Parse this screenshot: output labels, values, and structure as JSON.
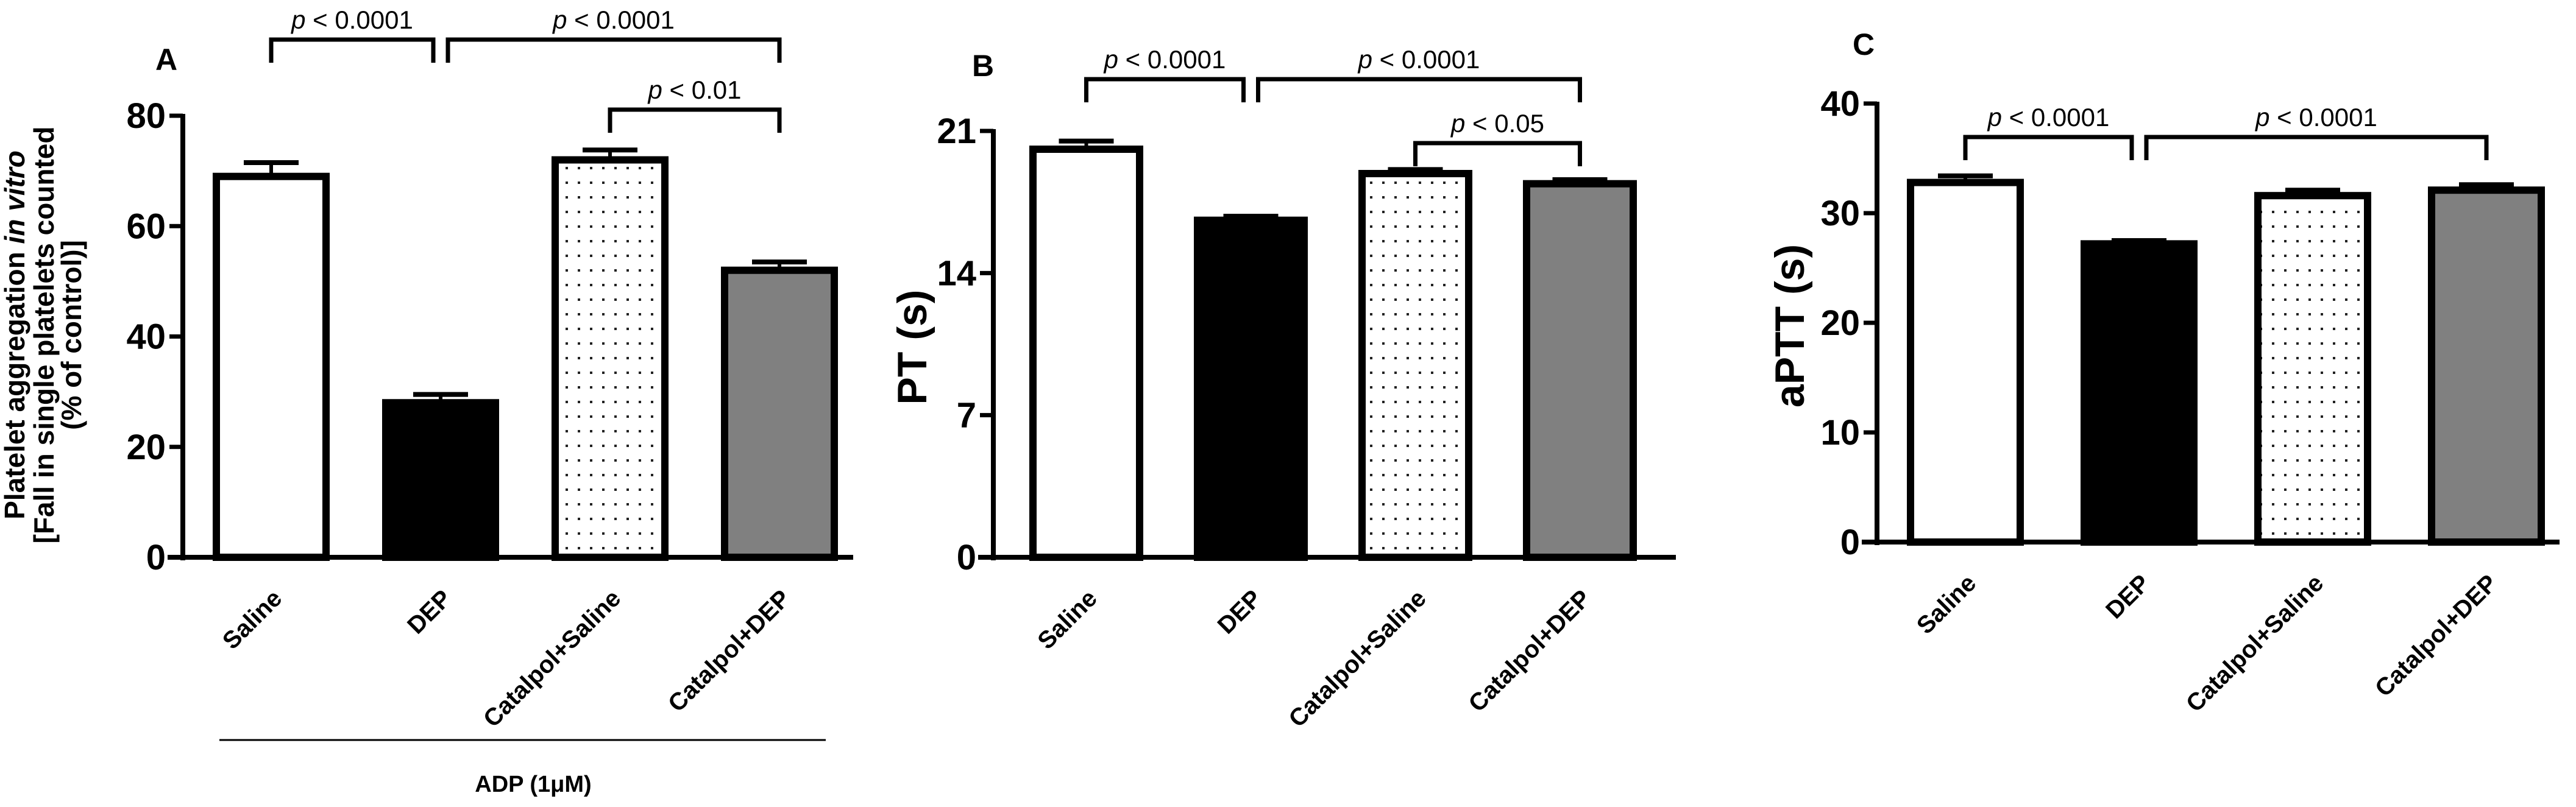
{
  "chart_data": [
    {
      "type": "bar",
      "panel": "A",
      "title": "",
      "categories": [
        "Saline",
        "DEP",
        "Catalpol+Saline",
        "Catalpol+DEP"
      ],
      "values": [
        69,
        28,
        72,
        52
      ],
      "errors": [
        2.5,
        1.5,
        1.8,
        1.5
      ],
      "fills": [
        "white",
        "black",
        "dotted",
        "gray"
      ],
      "ylabel_lines": [
        "Platelet aggregation in vitro",
        "[Fall in single platelets counted",
        "(% of control)]"
      ],
      "ylabel_italic_part": "in vitro",
      "xlabel": "ADP (1μM)",
      "ylim": [
        0,
        80
      ],
      "yticks": [
        0,
        20,
        40,
        60,
        80
      ],
      "annotations": [
        {
          "from": 0,
          "to": 1,
          "label": "p < 0.0001",
          "level": 2
        },
        {
          "from": 1,
          "to": 3,
          "label": "p < 0.0001",
          "level": 2
        },
        {
          "from": 2,
          "to": 3,
          "label": "p < 0.01",
          "level": 1
        }
      ]
    },
    {
      "type": "bar",
      "panel": "B",
      "title": "",
      "categories": [
        "Saline",
        "DEP",
        "Catalpol+Saline",
        "Catalpol+DEP"
      ],
      "values": [
        20.1,
        16.6,
        18.9,
        18.4
      ],
      "errors": [
        0.4,
        0.2,
        0.2,
        0.2
      ],
      "fills": [
        "white",
        "black",
        "dotted",
        "gray"
      ],
      "ylabel_lines": [
        "PT (s)"
      ],
      "xlabel": "",
      "ylim": [
        0,
        21
      ],
      "yticks": [
        0,
        7,
        14,
        21
      ],
      "annotations": [
        {
          "from": 0,
          "to": 1,
          "label": "p < 0.0001",
          "level": 2
        },
        {
          "from": 1,
          "to": 3,
          "label": "p < 0.0001",
          "level": 2
        },
        {
          "from": 2,
          "to": 3,
          "label": "p < 0.05",
          "level": 1
        }
      ]
    },
    {
      "type": "bar",
      "panel": "C",
      "title": "",
      "categories": [
        "Saline",
        "DEP",
        "Catalpol+Saline",
        "Catalpol+DEP"
      ],
      "values": [
        32.8,
        27.2,
        31.6,
        32.1
      ],
      "errors": [
        0.6,
        0.3,
        0.5,
        0.5
      ],
      "fills": [
        "white",
        "black",
        "dotted",
        "gray"
      ],
      "ylabel_lines": [
        "aPTT (s)"
      ],
      "xlabel": "",
      "ylim": [
        0,
        40
      ],
      "yticks": [
        0,
        10,
        20,
        30,
        40
      ],
      "annotations": [
        {
          "from": 0,
          "to": 1,
          "label": "p < 0.0001",
          "level": 1
        },
        {
          "from": 1,
          "to": 3,
          "label": "p < 0.0001",
          "level": 1
        }
      ]
    }
  ],
  "colors": {
    "axis": "#000000",
    "white_bar": "#ffffff",
    "black_bar": "#000000",
    "dotted_bar_bg": "#ffffff",
    "dotted_bar_dot": "#000000",
    "gray_bar": "#808080"
  }
}
